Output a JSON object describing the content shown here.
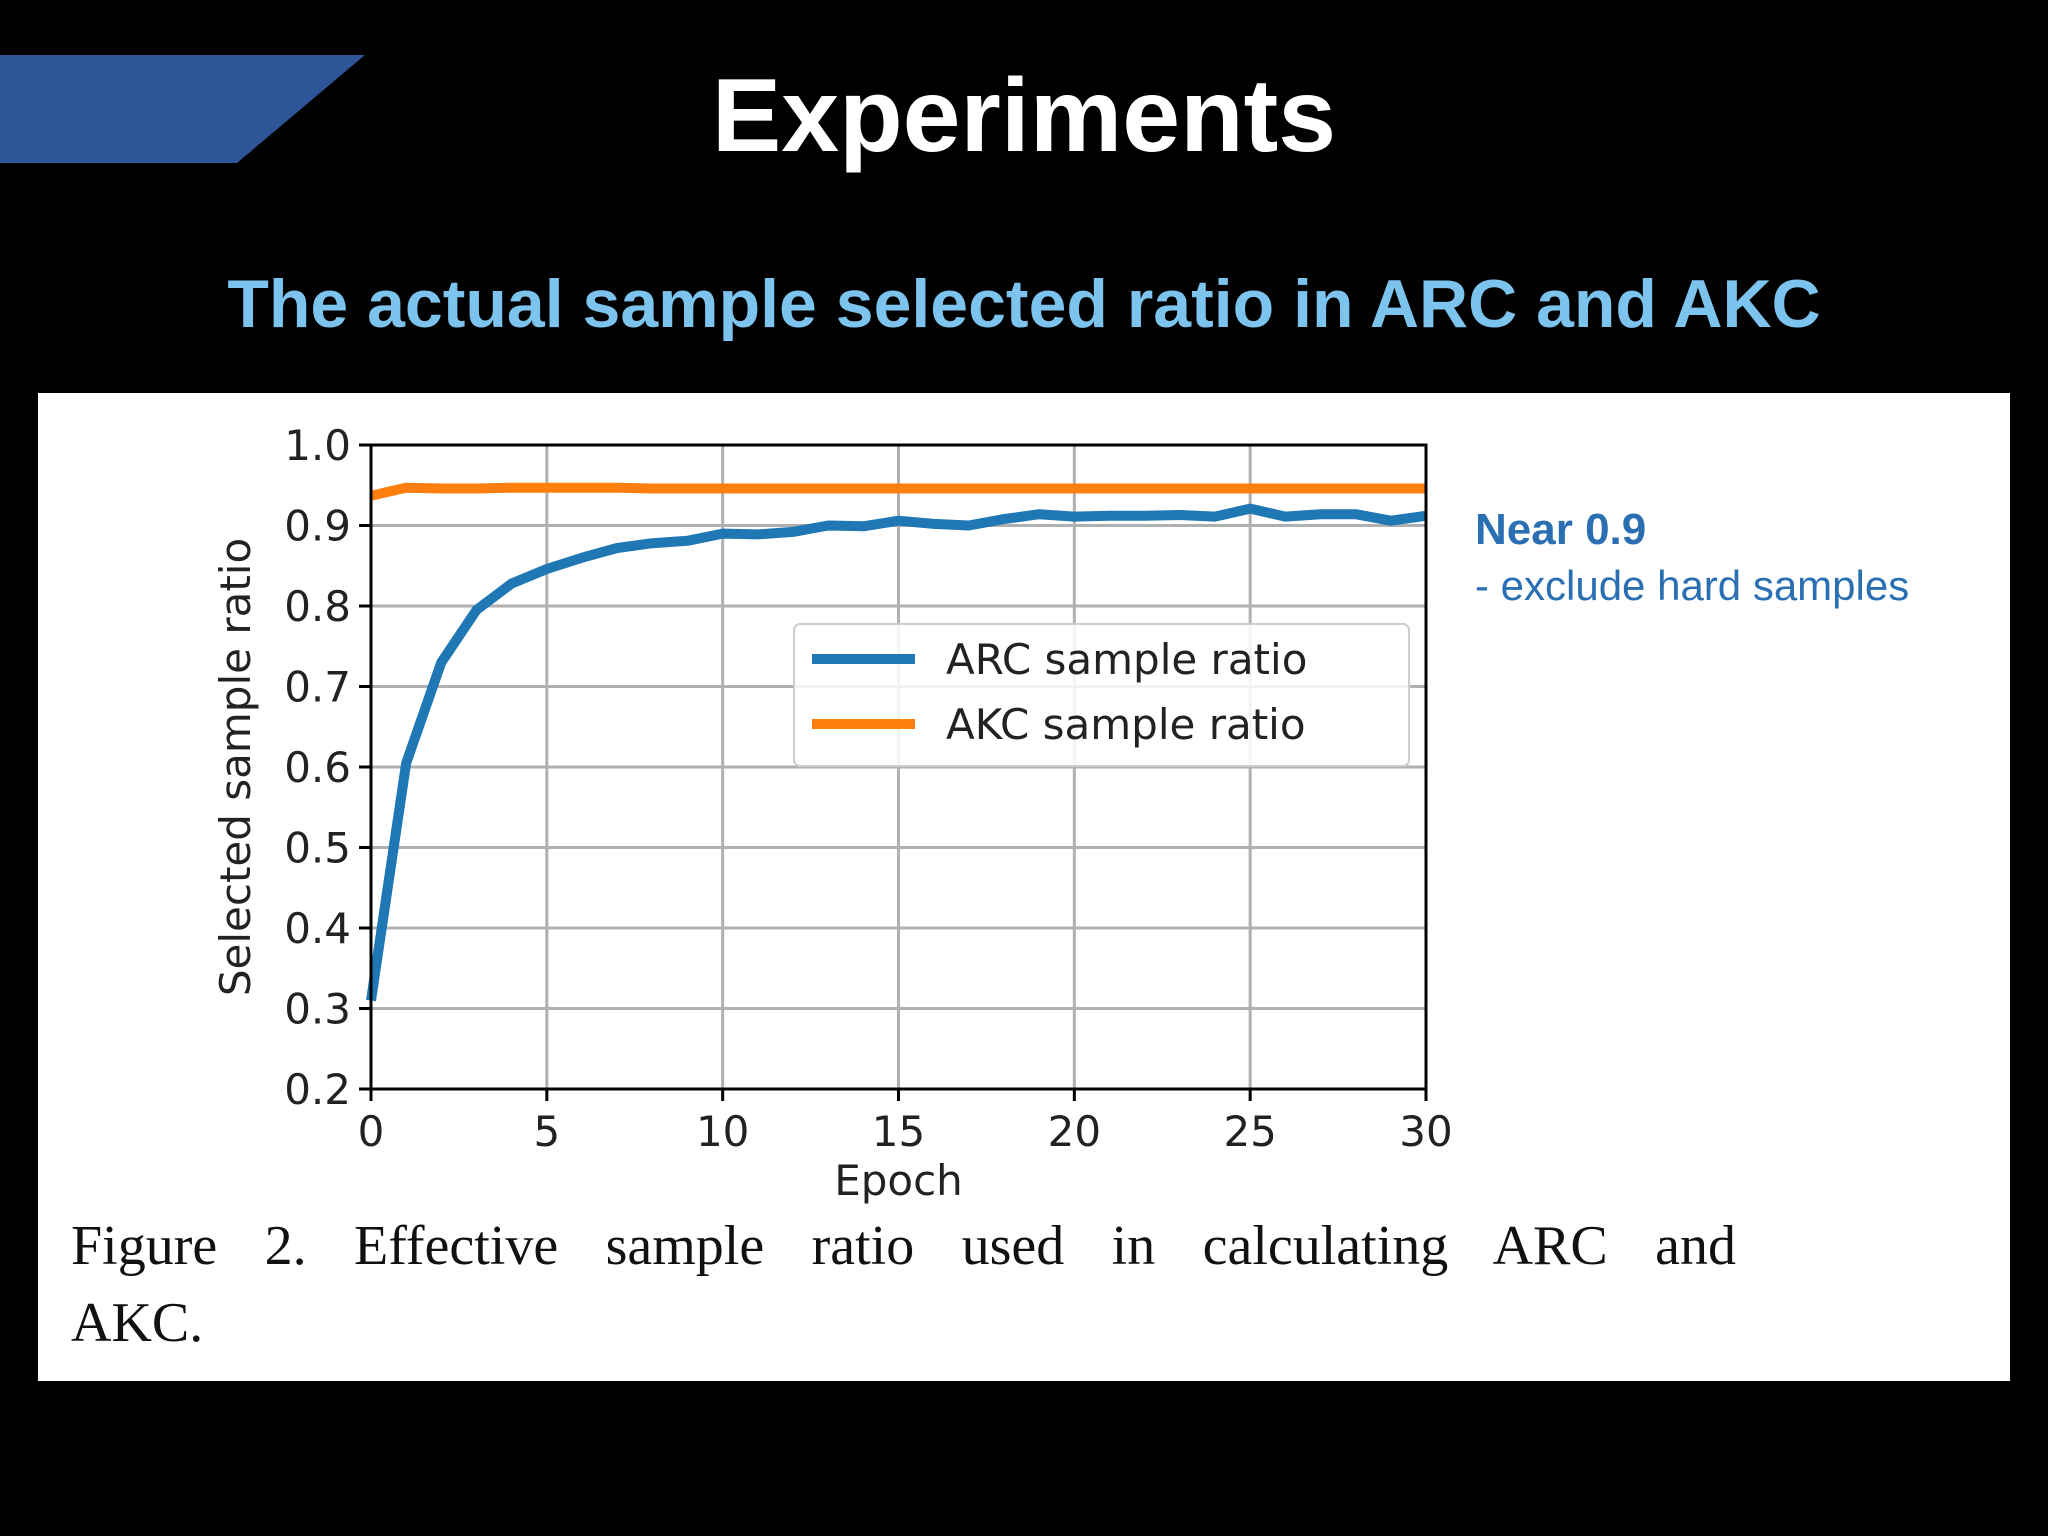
{
  "slide": {
    "title": "Experiments",
    "subtitle": "The actual sample selected ratio in ARC and AKC",
    "note_heading": "Near 0.9",
    "note_text": "- exclude hard samples",
    "caption_line1": "Figure 2. Effective sample ratio used in calculating ARC and",
    "caption_line2": "AKC."
  },
  "colors": {
    "background": "#000000",
    "banner": "#2e5597",
    "title": "#ffffff",
    "subtitle": "#7cc4ee",
    "note": "#2a6fb2",
    "arc_series": "#1f77b4",
    "akc_series": "#ff7f0e",
    "grid": "#b0b0b0"
  },
  "chart_data": {
    "type": "line",
    "title": "",
    "xlabel": "Epoch",
    "ylabel": "Selected sample ratio",
    "xlim": [
      0,
      30
    ],
    "ylim": [
      0.2,
      1.0
    ],
    "xticks": [
      0,
      5,
      10,
      15,
      20,
      25,
      30
    ],
    "yticks": [
      0.2,
      0.3,
      0.4,
      0.5,
      0.6,
      0.7,
      0.8,
      0.9,
      1.0
    ],
    "ytick_labels": [
      "0.2",
      "0.3",
      "0.4",
      "0.5",
      "0.6",
      "0.7",
      "0.8",
      "0.9",
      "1.0"
    ],
    "grid": true,
    "legend_position": "center-right",
    "x": [
      0,
      1,
      2,
      3,
      4,
      5,
      6,
      7,
      8,
      9,
      10,
      11,
      12,
      13,
      14,
      15,
      16,
      17,
      18,
      19,
      20,
      21,
      22,
      23,
      24,
      25,
      26,
      27,
      28,
      29,
      30
    ],
    "series": [
      {
        "name": "ARC sample ratio",
        "color": "#1f77b4",
        "values": [
          0.31,
          0.605,
          0.73,
          0.795,
          0.828,
          0.846,
          0.86,
          0.872,
          0.878,
          0.881,
          0.89,
          0.889,
          0.892,
          0.9,
          0.899,
          0.906,
          0.902,
          0.9,
          0.908,
          0.914,
          0.911,
          0.912,
          0.912,
          0.913,
          0.911,
          0.921,
          0.911,
          0.914,
          0.914,
          0.906,
          0.912
        ]
      },
      {
        "name": "AKC sample ratio",
        "color": "#ff7f0e",
        "values": [
          0.937,
          0.947,
          0.946,
          0.946,
          0.947,
          0.947,
          0.947,
          0.947,
          0.946,
          0.946,
          0.946,
          0.946,
          0.946,
          0.946,
          0.946,
          0.946,
          0.946,
          0.946,
          0.946,
          0.946,
          0.946,
          0.946,
          0.946,
          0.946,
          0.946,
          0.946,
          0.946,
          0.946,
          0.946,
          0.946,
          0.946
        ]
      }
    ]
  }
}
